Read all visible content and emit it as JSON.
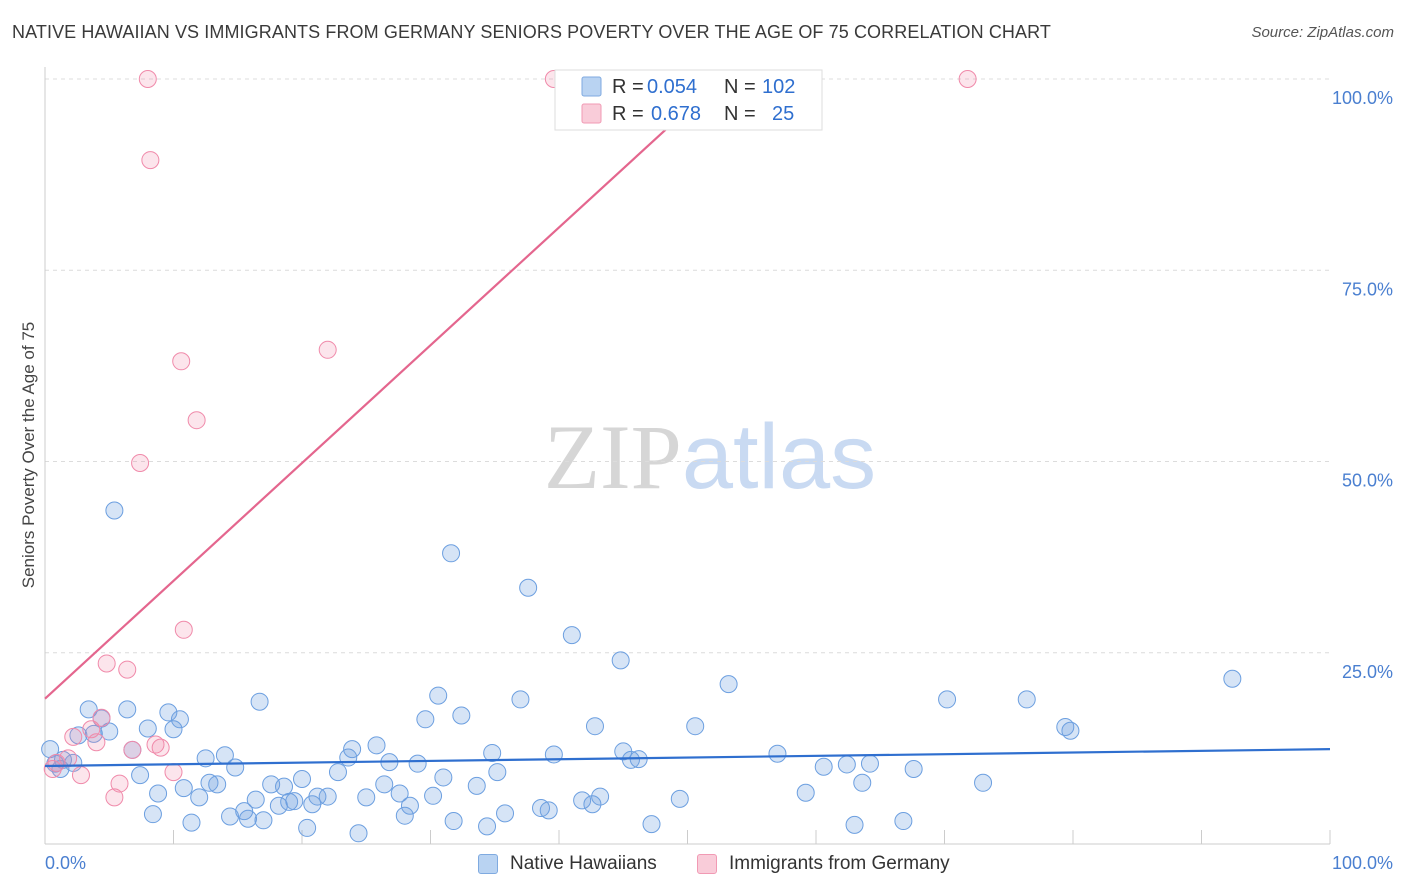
{
  "title": "NATIVE HAWAIIAN VS IMMIGRANTS FROM GERMANY SENIORS POVERTY OVER THE AGE OF 75 CORRELATION CHART",
  "source": "Source: ZipAtlas.com",
  "colors": {
    "blue": "#6c9fe0",
    "blue_line": "#2f6fcf",
    "pink": "#f08aaa",
    "pink_line": "#e4668e",
    "tick_label": "#4a7fd0",
    "grid": "#dcdcdc"
  },
  "legend_top": {
    "rows": [
      {
        "r_label": "R =",
        "r_value": "0.054",
        "n_label": "N =",
        "n_value": "102"
      },
      {
        "r_label": "R =",
        "r_value": "0.678",
        "n_label": "N =",
        "n_value": "25"
      }
    ]
  },
  "legend_bottom": {
    "series1": "Native Hawaiians",
    "series2": "Immigrants from Germany"
  },
  "watermark": {
    "part1": "ZIP",
    "part2": "atlas"
  },
  "chart_data": {
    "type": "scatter",
    "title": "NATIVE HAWAIIAN VS IMMIGRANTS FROM GERMANY SENIORS POVERTY OVER THE AGE OF 75 CORRELATION CHART",
    "xlabel": "",
    "ylabel": "Seniors Poverty Over the Age of 75",
    "xlim": [
      0,
      100
    ],
    "ylim": [
      0,
      100
    ],
    "x_tick_labels": [
      "0.0%",
      "100.0%"
    ],
    "y_ticks": [
      25,
      50,
      75,
      100
    ],
    "y_tick_labels": [
      "25.0%",
      "50.0%",
      "75.0%",
      "100.0%"
    ],
    "grid": true,
    "legend_placement": "top-center",
    "series": [
      {
        "name": "Native Hawaiians",
        "color": "#6c9fe0",
        "trend": {
          "x": [
            0,
            100
          ],
          "y": [
            10.2,
            12.4
          ]
        },
        "points": [
          [
            0.4,
            12.4
          ],
          [
            0.8,
            10.5
          ],
          [
            1.2,
            9.8
          ],
          [
            1.4,
            11.0
          ],
          [
            2.2,
            10.6
          ],
          [
            2.6,
            14.2
          ],
          [
            3.4,
            17.6
          ],
          [
            3.8,
            14.4
          ],
          [
            4.4,
            16.4
          ],
          [
            5.0,
            14.7
          ],
          [
            5.4,
            43.6
          ],
          [
            6.4,
            17.6
          ],
          [
            6.8,
            12.3
          ],
          [
            7.4,
            9.0
          ],
          [
            8.0,
            15.1
          ],
          [
            8.4,
            3.9
          ],
          [
            8.8,
            6.6
          ],
          [
            9.6,
            17.2
          ],
          [
            10.0,
            15.0
          ],
          [
            10.5,
            16.3
          ],
          [
            10.8,
            7.3
          ],
          [
            11.4,
            2.8
          ],
          [
            12.0,
            6.1
          ],
          [
            12.5,
            11.2
          ],
          [
            12.8,
            8.0
          ],
          [
            13.4,
            7.8
          ],
          [
            14.0,
            11.6
          ],
          [
            14.4,
            3.6
          ],
          [
            14.8,
            10.0
          ],
          [
            15.5,
            4.3
          ],
          [
            15.8,
            3.3
          ],
          [
            16.4,
            5.8
          ],
          [
            16.7,
            18.6
          ],
          [
            17.0,
            3.1
          ],
          [
            17.6,
            7.8
          ],
          [
            18.2,
            5.0
          ],
          [
            18.6,
            7.5
          ],
          [
            19.0,
            5.5
          ],
          [
            19.4,
            5.6
          ],
          [
            20.0,
            8.5
          ],
          [
            20.4,
            2.1
          ],
          [
            20.8,
            5.2
          ],
          [
            21.2,
            6.2
          ],
          [
            22.0,
            6.2
          ],
          [
            22.8,
            9.4
          ],
          [
            23.6,
            11.3
          ],
          [
            23.9,
            12.4
          ],
          [
            24.4,
            1.4
          ],
          [
            25.0,
            6.1
          ],
          [
            25.8,
            12.9
          ],
          [
            26.4,
            7.8
          ],
          [
            26.8,
            10.7
          ],
          [
            27.6,
            6.6
          ],
          [
            28.0,
            3.7
          ],
          [
            28.4,
            5.0
          ],
          [
            29.0,
            10.5
          ],
          [
            29.6,
            16.3
          ],
          [
            30.2,
            6.3
          ],
          [
            30.6,
            19.4
          ],
          [
            31.0,
            8.7
          ],
          [
            31.8,
            3.0
          ],
          [
            32.4,
            16.8
          ],
          [
            31.6,
            38.0
          ],
          [
            33.6,
            7.6
          ],
          [
            34.4,
            2.3
          ],
          [
            34.8,
            11.9
          ],
          [
            35.2,
            9.4
          ],
          [
            35.8,
            4.0
          ],
          [
            37.0,
            18.9
          ],
          [
            37.6,
            33.5
          ],
          [
            38.6,
            4.7
          ],
          [
            39.2,
            4.4
          ],
          [
            39.6,
            11.7
          ],
          [
            41.0,
            27.3
          ],
          [
            41.8,
            5.7
          ],
          [
            42.6,
            5.2
          ],
          [
            42.8,
            15.4
          ],
          [
            43.2,
            6.2
          ],
          [
            44.8,
            24.0
          ],
          [
            45.0,
            12.1
          ],
          [
            45.6,
            11.0
          ],
          [
            46.2,
            11.1
          ],
          [
            47.2,
            2.6
          ],
          [
            49.4,
            5.9
          ],
          [
            50.6,
            15.4
          ],
          [
            53.2,
            20.9
          ],
          [
            57.0,
            11.8
          ],
          [
            59.2,
            6.7
          ],
          [
            60.6,
            10.1
          ],
          [
            62.4,
            10.4
          ],
          [
            63.0,
            2.5
          ],
          [
            63.6,
            8.0
          ],
          [
            64.2,
            10.5
          ],
          [
            66.8,
            3.0
          ],
          [
            67.6,
            9.8
          ],
          [
            70.2,
            18.9
          ],
          [
            73.0,
            8.0
          ],
          [
            76.4,
            18.9
          ],
          [
            79.4,
            15.3
          ],
          [
            79.8,
            14.8
          ],
          [
            92.4,
            21.6
          ]
        ]
      },
      {
        "name": "Immigrants from Germany",
        "color": "#f08aaa",
        "trend": {
          "x": [
            0,
            52.6
          ],
          "y": [
            19.0,
            100
          ]
        },
        "points": [
          [
            0.6,
            9.8
          ],
          [
            0.9,
            10.6
          ],
          [
            1.8,
            11.2
          ],
          [
            2.2,
            14.0
          ],
          [
            2.8,
            9.0
          ],
          [
            3.6,
            15.0
          ],
          [
            4.0,
            13.3
          ],
          [
            4.4,
            16.5
          ],
          [
            4.8,
            23.6
          ],
          [
            5.4,
            6.1
          ],
          [
            5.8,
            7.9
          ],
          [
            6.4,
            22.8
          ],
          [
            6.8,
            12.3
          ],
          [
            7.4,
            49.8
          ],
          [
            8.0,
            100.0
          ],
          [
            8.2,
            89.4
          ],
          [
            8.6,
            13.0
          ],
          [
            9.0,
            12.6
          ],
          [
            10.0,
            9.4
          ],
          [
            10.6,
            63.1
          ],
          [
            10.8,
            28.0
          ],
          [
            11.8,
            55.4
          ],
          [
            22.0,
            64.6
          ],
          [
            39.6,
            100.0
          ],
          [
            71.8,
            100.0
          ]
        ]
      }
    ]
  }
}
